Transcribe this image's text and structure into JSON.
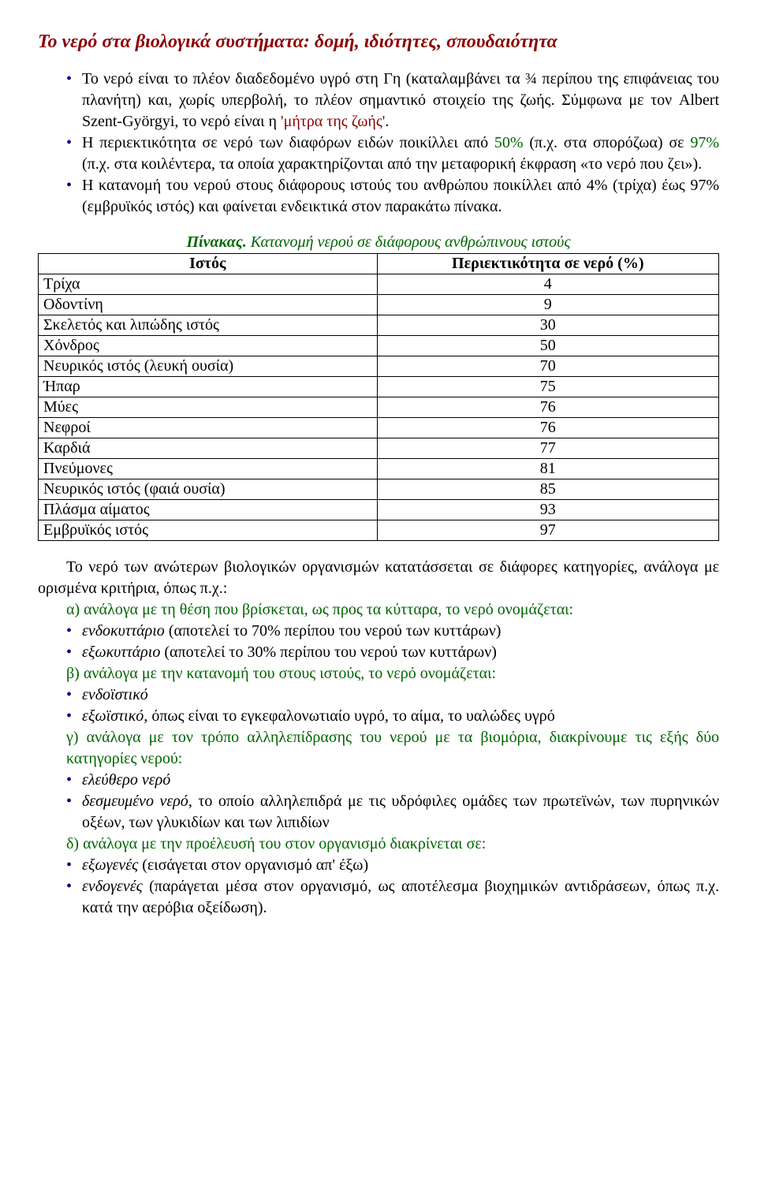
{
  "title": "Το νερό στα βιολογικά συστήματα: δομή, ιδιότητες, σπουδαιότητα",
  "bullets": {
    "b1_a": "Το νερό είναι το πλέον διαδεδομένο υγρό στη Γη (καταλαμβάνει τα ¾ περίπου της επιφάνειας του πλανήτη) και, χωρίς υπερβολή, το πλέον σημαντικό στοιχείο της ζωής. Σύμφωνα με τον Albert Szent-Györgyi, το νερό είναι η ",
    "b1_hl": "'μήτρα της ζωής'",
    "b1_b": ".",
    "b2_a": "Η περιεκτικότητα σε νερό των διαφόρων ειδών ποικίλλει από ",
    "b2_hl1": "50%",
    "b2_b": " (π.χ. στα σπορόζωα) σε ",
    "b2_hl2": "97%",
    "b2_c": " (π.χ. στα κοιλέντερα, τα οποία χαρακτηρίζονται από την μεταφορική έκφραση «το νερό που ζει»).",
    "b3": "Η κατανομή του νερού στους διάφορους ιστούς του ανθρώπου ποικίλλει από 4% (τρίχα) έως 97% (εμβρυϊκός ιστός) και φαίνεται ενδεικτικά στον παρακάτω πίνακα."
  },
  "table": {
    "caption_lead": "Πίνακας.",
    "caption_rest": " Κατανομή νερού σε διάφορους ανθρώπινους ιστούς",
    "col1": "Ιστός",
    "col2": "Περιεκτικότητα σε νερό (%)",
    "rows": [
      {
        "label": "Τρίχα",
        "value": "4"
      },
      {
        "label": "Οδοντίνη",
        "value": "9"
      },
      {
        "label": "Σκελετός και λιπώδης ιστός",
        "value": "30"
      },
      {
        "label": "Χόνδρος",
        "value": "50"
      },
      {
        "label": "Νευρικός ιστός (λευκή ουσία)",
        "value": "70"
      },
      {
        "label": "Ήπαρ",
        "value": "75"
      },
      {
        "label": "Μύες",
        "value": "76"
      },
      {
        "label": "Νεφροί",
        "value": "76"
      },
      {
        "label": "Καρδιά",
        "value": "77"
      },
      {
        "label": "Πνεύμονες",
        "value": "81"
      },
      {
        "label": "Νευρικός ιστός (φαιά ουσία)",
        "value": "85"
      },
      {
        "label": "Πλάσμα αίματος",
        "value": "93"
      },
      {
        "label": "Εμβρυϊκός ιστός",
        "value": "97"
      }
    ]
  },
  "para2": "Το νερό των ανώτερων βιολογικών οργανισμών κατατάσσεται σε διάφορες κατηγορίες, ανάλογα με ορισμένα κριτήρια, όπως π.χ.:",
  "cat_a": "α) ανάλογα με τη θέση που βρίσκεται, ως προς τα κύτταρα, το νερό ονομάζεται:",
  "sub_a": {
    "s1_a": "ενδοκυττάριο",
    "s1_b": " (αποτελεί το 70% περίπου του νερού των κυττάρων)",
    "s2_a": "εξωκυττάριο",
    "s2_b": " (αποτελεί το 30% περίπου του νερού των κυττάρων)"
  },
  "cat_b": "β) ανάλογα με την κατανομή του στους ιστούς, το νερό ονομάζεται:",
  "sub_b": {
    "s1": "ενδοϊστικό",
    "s2_a": "εξωϊστικό",
    "s2_b": ", όπως είναι το εγκεφαλονωτιαίο υγρό, το αίμα, το υαλώδες υγρό"
  },
  "cat_c": "γ) ανάλογα με τον τρόπο αλληλεπίδρασης του νερού με τα βιομόρια, διακρίνουμε τις εξής δύο κατηγορίες νερού:",
  "sub_c": {
    "s1": "ελεύθερο νερό",
    "s2_a": "δεσμευμένο νερό",
    "s2_b": ", το οποίο αλληλεπιδρά με τις υδρόφιλες ομάδες των πρωτεϊνών, των πυρηνικών οξέων, των γλυκιδίων και των λιπιδίων"
  },
  "cat_d": "δ) ανάλογα με την προέλευσή του στον οργανισμό διακρίνεται σε:",
  "sub_d": {
    "s1_a": "εξωγενές",
    "s1_b": " (εισάγεται στον οργανισμό απ' έξω)",
    "s2_a": "ενδογενές",
    "s2_b": " (παράγεται μέσα στον οργανισμό, ως αποτέλεσμα βιοχημικών αντιδράσεων, όπως π.χ. κατά την αερόβια οξείδωση)."
  },
  "colors": {
    "title": "#8b0000",
    "bullet": "#000080",
    "green": "#006400"
  }
}
